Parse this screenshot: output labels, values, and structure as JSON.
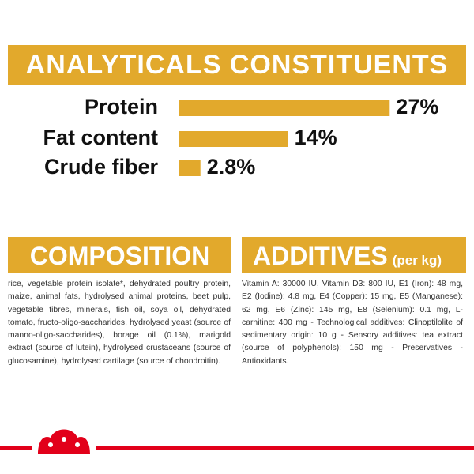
{
  "analyticals": {
    "title": "ANALYTICALS CONSTITUENTS",
    "categories": [
      "Protein",
      "Fat content",
      "Crude fiber"
    ],
    "values": [
      27,
      14,
      2.8
    ],
    "value_labels": [
      "27%",
      "14%",
      "2.8%"
    ],
    "color": "#e2a92c"
  },
  "composition": {
    "title": "COMPOSITION",
    "text": "rice, vegetable protein isolate*, dehydrated poultry protein, maize, animal fats, hydrolysed animal proteins, beet pulp, vegetable fibres, minerals, fish oil, soya oil, dehydrated tomato, fructo-oligo-saccharides, hydrolysed yeast (source of manno-oligo-saccharides), borage oil (0.1%), marigold extract (source of lutein), hydrolysed crustaceans (source of glucosamine), hydrolysed cartilage (source of chondroitin)."
  },
  "additives": {
    "title": "ADDITIVES",
    "subtitle": "(per kg)",
    "text": "Vitamin A: 30000 IU, Vitamin D3: 800 IU, E1 (Iron): 48 mg, E2 (Iodine): 4.8 mg, E4 (Copper): 15 mg, E5 (Manganese): 62 mg, E6 (Zinc): 145 mg, E8 (Selenium): 0.1 mg, L-carnitine: 400 mg - Technological additives: Clinoptilolite of sedimentary origin: 10 g - Sensory additives: tea extract (source of polyphenols): 150 mg - Preservatives - Antioxidants."
  }
}
